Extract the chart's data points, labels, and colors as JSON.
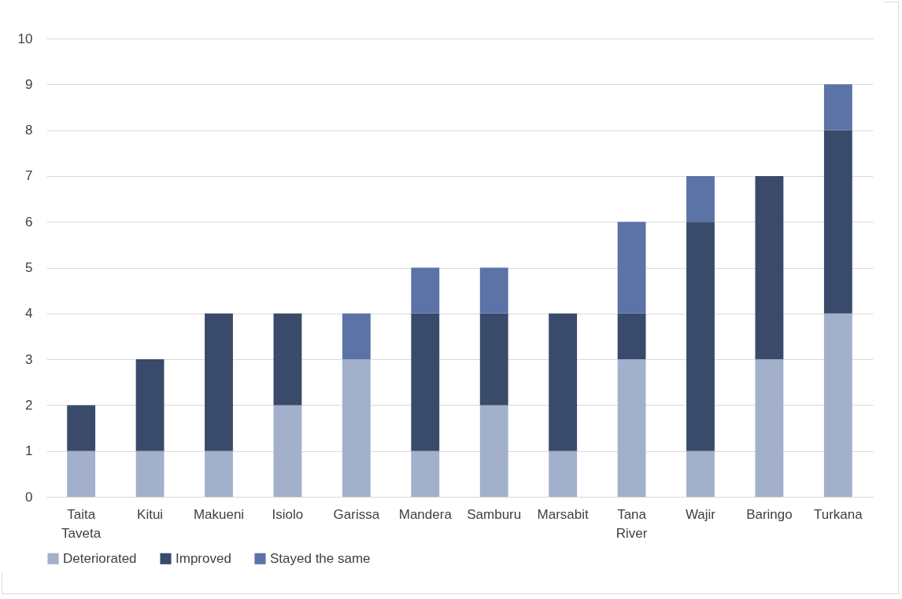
{
  "chart_data": {
    "type": "bar",
    "stacked": true,
    "categories": [
      "Taita Taveta",
      "Kitui",
      "Makueni",
      "Isiolo",
      "Garissa",
      "Mandera",
      "Samburu",
      "Marsabit",
      "Tana River",
      "Wajir",
      "Baringo",
      "Turkana"
    ],
    "series": [
      {
        "name": "Deteriorated",
        "color": "#a2b0cc",
        "values": [
          1,
          1,
          1,
          2,
          3,
          1,
          2,
          1,
          3,
          1,
          3,
          4
        ]
      },
      {
        "name": "Improved",
        "color": "#3a4a6b",
        "values": [
          1,
          2,
          3,
          2,
          0,
          3,
          2,
          3,
          1,
          5,
          4,
          4
        ]
      },
      {
        "name": "Stayed the same",
        "color": "#5b73a6",
        "values": [
          0,
          0,
          0,
          0,
          1,
          1,
          1,
          0,
          2,
          1,
          0,
          1
        ]
      }
    ],
    "ylim": [
      0,
      10
    ],
    "yticks": [
      0,
      1,
      2,
      3,
      4,
      5,
      6,
      7,
      8,
      9,
      10
    ],
    "grid": "y",
    "legend": "bottom"
  }
}
